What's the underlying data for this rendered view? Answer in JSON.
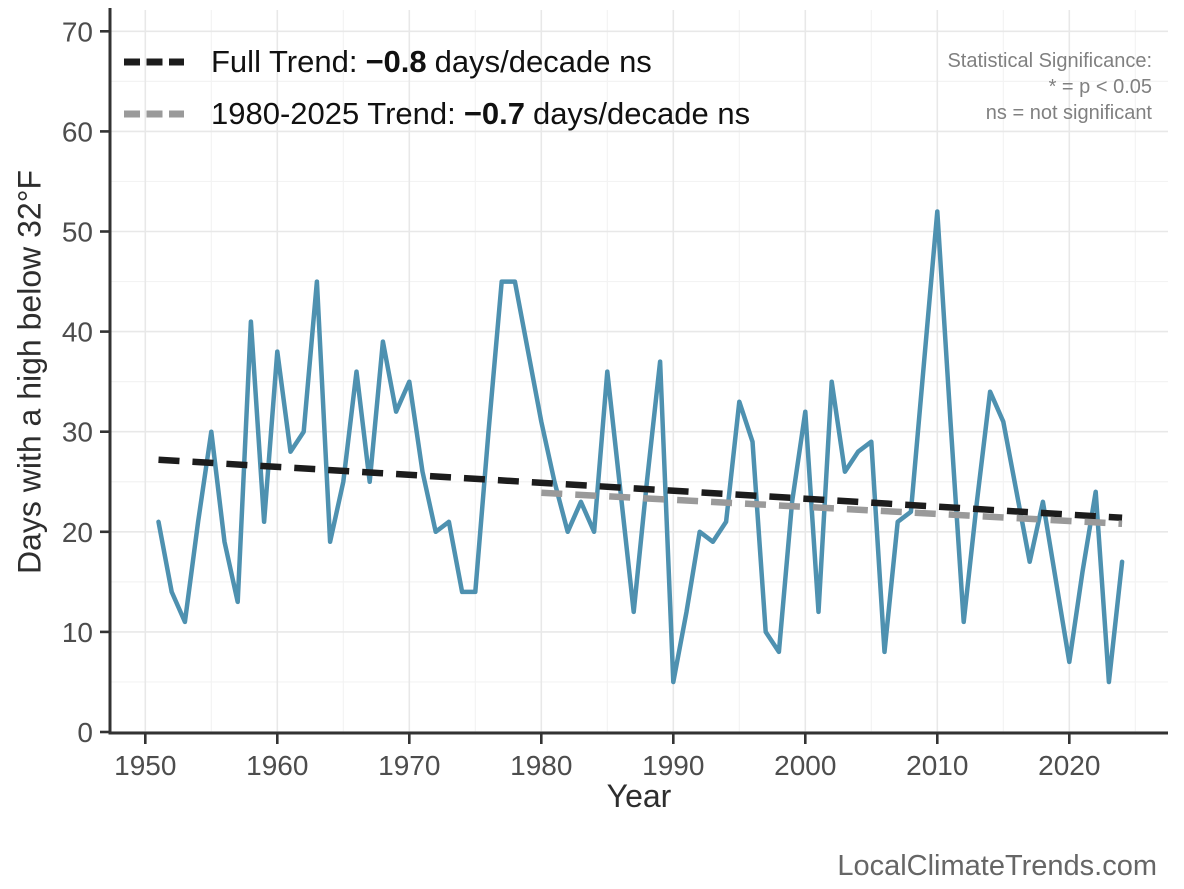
{
  "page": {
    "watermark": "LocalClimateTrends.com"
  },
  "axes": {
    "x": {
      "title": "Year",
      "ticks": [
        1950,
        1960,
        1970,
        1980,
        1990,
        2000,
        2010,
        2020
      ]
    },
    "y": {
      "title": "Days with a high below 32°F",
      "ticks": [
        0,
        10,
        20,
        30,
        40,
        50,
        60,
        70
      ]
    }
  },
  "legend": {
    "full_trend": {
      "label_prefix": "Full Trend:",
      "value": "−0.8",
      "label_suffix": "days/decade ns"
    },
    "recent_trend": {
      "label_prefix": "1980-2025 Trend:",
      "value": "−0.7",
      "label_suffix": "days/decade ns"
    }
  },
  "significance_note": {
    "line1": "Statistical Significance:",
    "line2": "* = p < 0.05",
    "line3": "ns = not significant"
  },
  "chart_data": {
    "type": "line",
    "title": "",
    "xlabel": "Year",
    "ylabel": "Days with a high below 32°F",
    "xlim": [
      1947.3,
      2027.5
    ],
    "ylim": [
      0,
      72
    ],
    "grid": true,
    "x": [
      1951,
      1952,
      1953,
      1954,
      1955,
      1956,
      1957,
      1958,
      1959,
      1960,
      1961,
      1962,
      1963,
      1964,
      1965,
      1966,
      1967,
      1968,
      1969,
      1970,
      1971,
      1972,
      1973,
      1974,
      1975,
      1976,
      1977,
      1978,
      1979,
      1980,
      1981,
      1982,
      1983,
      1984,
      1985,
      1986,
      1987,
      1988,
      1989,
      1990,
      1991,
      1992,
      1993,
      1994,
      1995,
      1996,
      1997,
      1998,
      1999,
      2000,
      2001,
      2002,
      2003,
      2004,
      2005,
      2006,
      2007,
      2008,
      2009,
      2010,
      2011,
      2012,
      2013,
      2014,
      2015,
      2016,
      2017,
      2018,
      2019,
      2020,
      2021,
      2022,
      2023,
      2024
    ],
    "series": [
      {
        "name": "Days with a high below 32°F",
        "color": "#4e91b0",
        "values": [
          21,
          14,
          11,
          21,
          30,
          19,
          13,
          41,
          21,
          38,
          28,
          30,
          45,
          19,
          25,
          36,
          25,
          39,
          32,
          35,
          26,
          20,
          21,
          14,
          14,
          30,
          45,
          45,
          38,
          31,
          25,
          20,
          23,
          20,
          36,
          24,
          12,
          25,
          37,
          5,
          12,
          20,
          19,
          21,
          33,
          29,
          10,
          8,
          23,
          32,
          12,
          35,
          26,
          28,
          29,
          8,
          21,
          22,
          37,
          52,
          31,
          11,
          23,
          34,
          31,
          24,
          17,
          23,
          15,
          7,
          16,
          24,
          5,
          17
        ]
      }
    ],
    "trend_lines": [
      {
        "name": "Full Trend",
        "slope_per_decade": -0.8,
        "significance": "ns",
        "color": "#1c1c1c",
        "dashed": true,
        "x": [
          1951,
          2024
        ],
        "values": [
          27.2,
          21.4
        ]
      },
      {
        "name": "1980-2025 Trend",
        "slope_per_decade": -0.7,
        "significance": "ns",
        "color": "#9a9a9a",
        "dashed": true,
        "x": [
          1980,
          2024
        ],
        "values": [
          23.9,
          20.8
        ]
      }
    ]
  }
}
